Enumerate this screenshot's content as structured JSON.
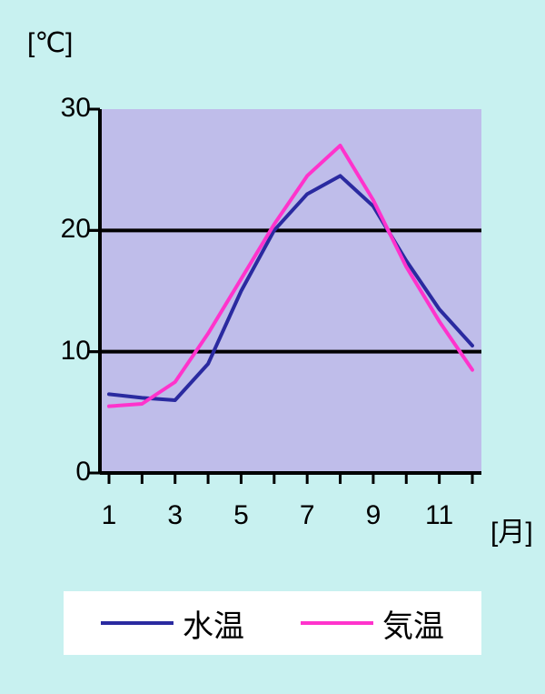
{
  "chart": {
    "type": "line",
    "y_unit_label": "[℃]",
    "x_unit_label": "[月]",
    "background_color": "#c8f1f0",
    "plot_background_color": "#bfbdea",
    "axis_color": "#000000",
    "grid_color": "#000000",
    "tick_color": "#000000",
    "ylim": [
      0,
      30
    ],
    "y_ticks": [
      0,
      10,
      20,
      30
    ],
    "y_tick_labels": [
      "0",
      "10",
      "20",
      "30"
    ],
    "x_indices": [
      1,
      2,
      3,
      4,
      5,
      6,
      7,
      8,
      9,
      10,
      11,
      12
    ],
    "x_ticks_labels": [
      "1",
      "3",
      "5",
      "7",
      "9",
      "11"
    ],
    "x_ticks_positions": [
      1,
      3,
      5,
      7,
      9,
      11
    ],
    "axis_line_width": 4,
    "grid_line_width": 4,
    "series_line_width": 4,
    "tick_length": 12,
    "label_fontsize": 30,
    "legend_fontsize": 34,
    "legend_background": "#ffffff",
    "series": [
      {
        "name": "水温",
        "color": "#2a2aa0",
        "values": [
          6.5,
          6.2,
          6.0,
          9.0,
          15.0,
          20.0,
          23.0,
          24.5,
          22.0,
          17.5,
          13.5,
          10.5
        ]
      },
      {
        "name": "気温",
        "color": "#ff33cc",
        "values": [
          5.5,
          5.7,
          7.5,
          11.5,
          16.0,
          20.5,
          24.5,
          27.0,
          22.5,
          17.0,
          12.5,
          8.5
        ]
      }
    ]
  }
}
